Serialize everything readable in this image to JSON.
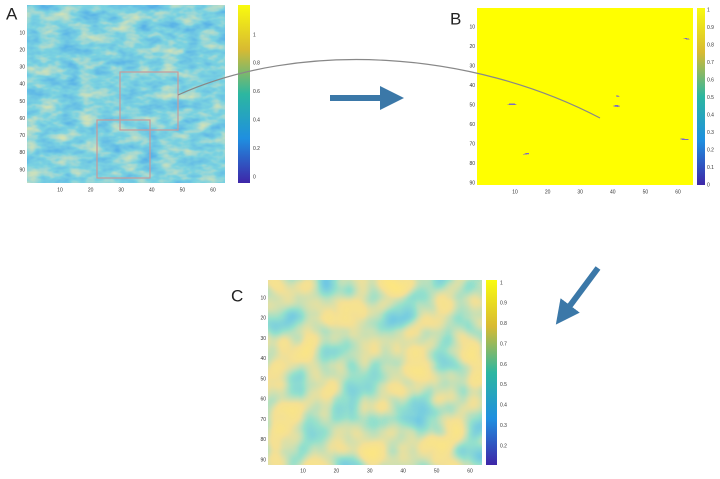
{
  "panels": [
    {
      "label": "A",
      "xticks": [
        10,
        20,
        30,
        40,
        50,
        60
      ],
      "yticks": [
        10,
        20,
        30,
        40,
        50,
        60,
        70,
        80,
        90
      ],
      "colorbar_ticks": [
        0,
        0.2,
        0.4,
        0.6,
        0.8,
        1
      ]
    },
    {
      "label": "B",
      "xticks": [
        10,
        20,
        30,
        40,
        50,
        60
      ],
      "yticks": [
        10,
        20,
        30,
        40,
        50,
        60,
        70,
        80,
        90
      ],
      "colorbar_ticks": [
        0,
        0.1,
        0.2,
        0.3,
        0.4,
        0.5,
        0.6,
        0.7,
        0.8,
        0.9,
        1
      ]
    },
    {
      "label": "C",
      "xticks": [
        10,
        20,
        30,
        40,
        50,
        60
      ],
      "yticks": [
        10,
        20,
        30,
        40,
        50,
        60,
        70,
        80,
        90
      ],
      "colorbar_ticks": [
        0.2,
        0.3,
        0.4,
        0.5,
        0.6,
        0.7,
        0.8,
        0.9,
        1
      ]
    }
  ]
}
